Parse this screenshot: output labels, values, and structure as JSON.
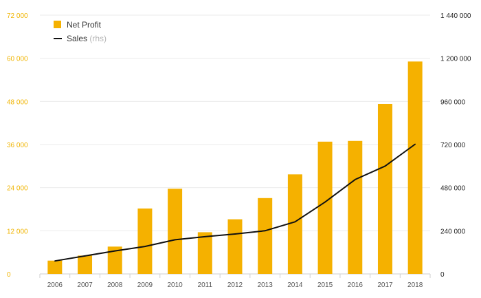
{
  "chart_data": {
    "type": "bar",
    "categories": [
      "2006",
      "2007",
      "2008",
      "2009",
      "2010",
      "2011",
      "2012",
      "2013",
      "2014",
      "2015",
      "2016",
      "2017",
      "2018"
    ],
    "series": [
      {
        "name": "Net Profit",
        "axis": "left",
        "mark": "bar",
        "color": "#f5b100",
        "values": [
          3700,
          5100,
          7600,
          18200,
          23700,
          11600,
          15200,
          21100,
          27700,
          36800,
          37000,
          47300,
          59100
        ]
      },
      {
        "name": "Sales",
        "name_suffix": "(rhs)",
        "axis": "right",
        "mark": "line",
        "color": "#111111",
        "values": [
          72000,
          100000,
          128000,
          153000,
          190000,
          207000,
          222000,
          240000,
          290000,
          400000,
          525000,
          600000,
          722000
        ]
      }
    ],
    "left_axis": {
      "ylim": [
        0,
        72000
      ],
      "ticks": [
        0,
        12000,
        24000,
        36000,
        48000,
        60000,
        72000
      ],
      "tick_labels": [
        "0",
        "12 000",
        "24 000",
        "36 000",
        "48 000",
        "60 000",
        "72 000"
      ],
      "color": "#f0b400"
    },
    "right_axis": {
      "ylim": [
        0,
        1440000
      ],
      "ticks": [
        0,
        240000,
        480000,
        720000,
        960000,
        1200000,
        1440000
      ],
      "tick_labels": [
        "0",
        "240 000",
        "480 000",
        "720 000",
        "960 000",
        "1 200 000",
        "1 440 000"
      ],
      "color": "#222222"
    },
    "grid": true,
    "legend_position": "top-left"
  }
}
